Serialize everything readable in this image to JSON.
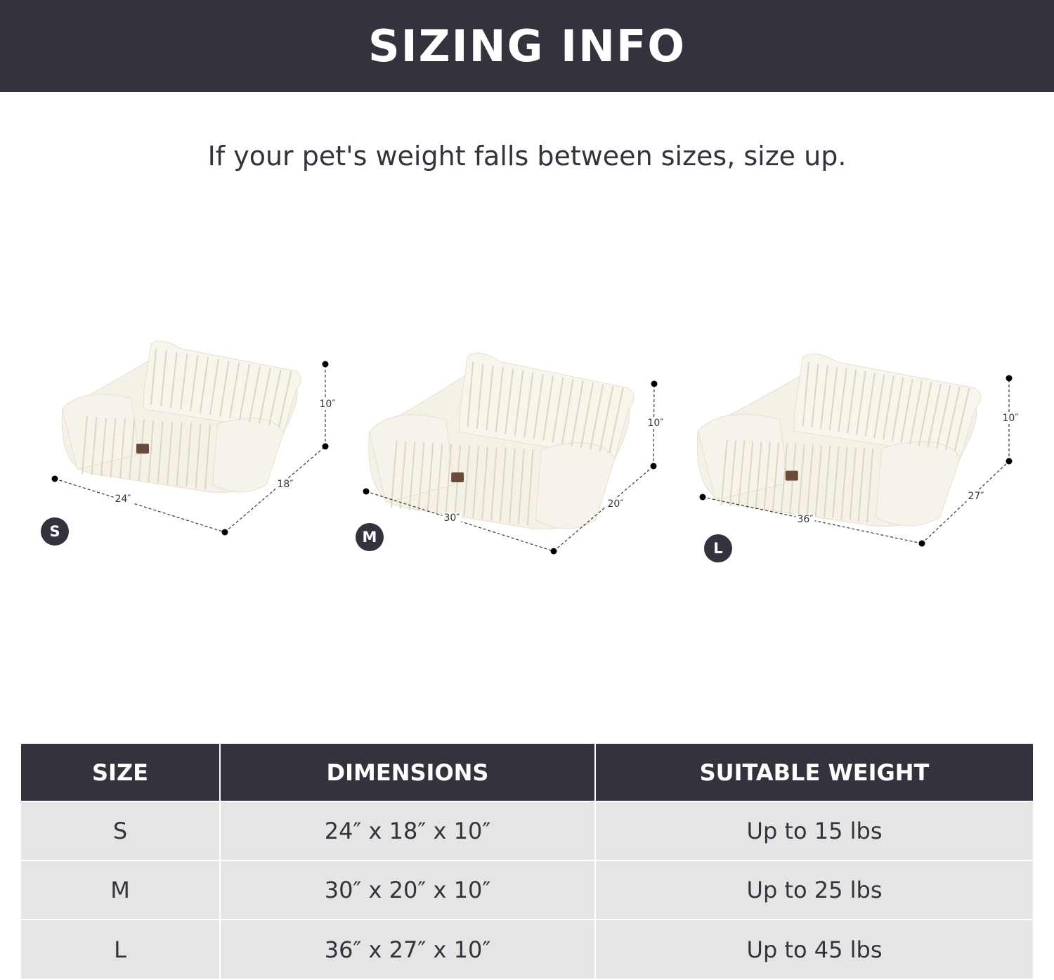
{
  "header": {
    "title": "SIZING INFO"
  },
  "subtitle": "If your pet's weight falls between sizes, size up.",
  "colors": {
    "dark": "#33333d",
    "row_bg": "#e5e5e5",
    "bed": "#f5f1e6"
  },
  "beds": [
    {
      "size": "S",
      "length": "24″",
      "width": "18″",
      "height": "10″"
    },
    {
      "size": "M",
      "length": "30″",
      "width": "20″",
      "height": "10″"
    },
    {
      "size": "L",
      "length": "36″",
      "width": "27″",
      "height": "10″"
    }
  ],
  "table": {
    "headers": [
      "SIZE",
      "DIMENSIONS",
      "SUITABLE WEIGHT"
    ],
    "rows": [
      [
        "S",
        "24″ x 18″ x 10″",
        "Up to 15 lbs"
      ],
      [
        "M",
        "30″ x 20″ x 10″",
        "Up to 25 lbs"
      ],
      [
        "L",
        "36″ x 27″ x 10″",
        "Up to 45 lbs"
      ]
    ]
  }
}
